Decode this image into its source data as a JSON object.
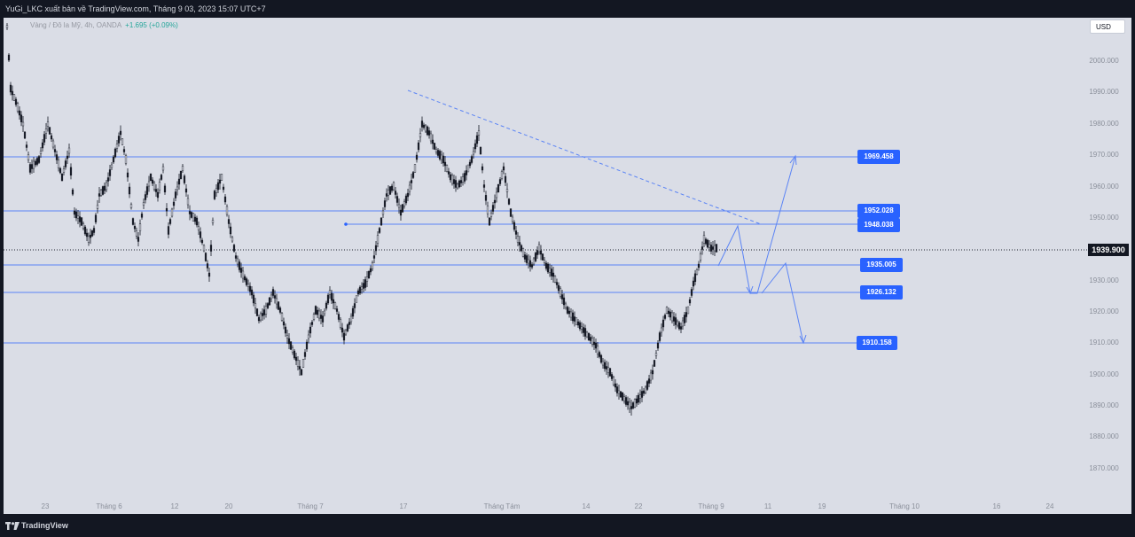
{
  "header": {
    "publisher_text": "YuGi_LKC xuất bản về TradingView.com, Tháng 9 03, 2023 15:07 UTC+7"
  },
  "legend": {
    "instrument": "Vàng / Đô la Mỹ, 4h, OANDA",
    "change": "+1.695 (+0.09%)"
  },
  "currency_button": "USD",
  "current_price": "1939.900",
  "y_axis": [
    "2000.000",
    "1990.000",
    "1980.000",
    "1970.000",
    "1960.000",
    "1950.000",
    "1930.000",
    "1920.000",
    "1910.000",
    "1900.000",
    "1890.000",
    "1880.000",
    "1870.000"
  ],
  "x_axis": [
    "23",
    "Tháng 6",
    "12",
    "20",
    "Tháng 7",
    "17",
    "Tháng Tám",
    "14",
    "22",
    "Tháng 9",
    "11",
    "19",
    "Tháng 10",
    "16",
    "24"
  ],
  "levels": [
    "1969.458",
    "1952.028",
    "1948.038",
    "1935.005",
    "1926.132",
    "1910.158"
  ],
  "footer": {
    "brand": "TradingView"
  },
  "colors": {
    "background": "#dadde6",
    "line": "#5b84f5",
    "tag": "#2962ff",
    "candle": "#131722",
    "frame": "#131722"
  },
  "icons": {
    "logo": "tradingview-logo-icon"
  }
}
